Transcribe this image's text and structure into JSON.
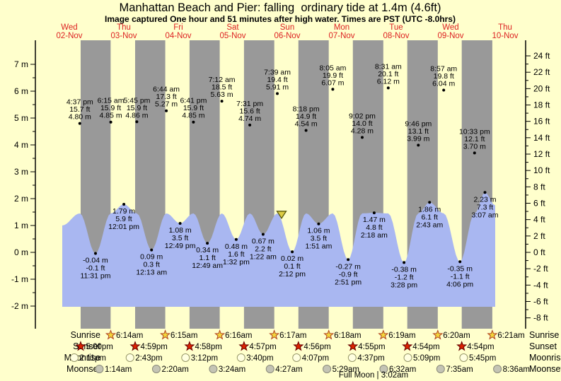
{
  "title": "Manhattan Beach and Pier: falling  ordinary tide at 1.4m (4.6ft)",
  "subtitle": "Image captured One hour and 51 minutes after high water. Times are PST (UTC -8.0hrs)",
  "colors": {
    "background": "#ffffcc",
    "night_band": "#999999",
    "water": "#a9b7f1",
    "day_label": "#dd2222",
    "axis": "#000000",
    "annotation": "#000000",
    "marker_fill": "#ddcc44",
    "marker_stroke": "#55550a",
    "sunrise_star_fill": "#f2d73c",
    "sunrise_star_stroke": "#b04020",
    "sunset_star_fill": "#dd2200",
    "sunset_star_stroke": "#660000",
    "moonrise_fill": "#ffffe0",
    "moonrise_stroke": "#99996a",
    "moonset_fill": "#c4c4b4",
    "moonset_stroke": "#8a8a7a"
  },
  "days": [
    {
      "label": "Wed",
      "date": "02-Nov"
    },
    {
      "label": "Thu",
      "date": "03-Nov"
    },
    {
      "label": "Fri",
      "date": "04-Nov"
    },
    {
      "label": "Sat",
      "date": "05-Nov"
    },
    {
      "label": "Sun",
      "date": "06-Nov"
    },
    {
      "label": "Mon",
      "date": "07-Nov"
    },
    {
      "label": "Tue",
      "date": "08-Nov"
    },
    {
      "label": "Wed",
      "date": "09-Nov"
    },
    {
      "label": "Thu",
      "date": "10-Nov"
    }
  ],
  "chart_data": {
    "type": "area",
    "title": "Manhattan Beach and Pier tide curve, 02-Nov to 10-Nov",
    "ylabel_left": "meters",
    "ylabel_right": "feet",
    "ylim_m": [
      -2,
      7
    ],
    "ylim_ft": [
      -8,
      24
    ],
    "grid": false,
    "y_axis_left_ticks": [
      {
        "v": 7,
        "label": "7 m"
      },
      {
        "v": 6,
        "label": "6 m"
      },
      {
        "v": 5,
        "label": "5 m"
      },
      {
        "v": 4,
        "label": "4 m"
      },
      {
        "v": 3,
        "label": "3 m"
      },
      {
        "v": 2,
        "label": "2 m"
      },
      {
        "v": 1,
        "label": "1 m"
      },
      {
        "v": 0,
        "label": "0 m"
      },
      {
        "v": -1,
        "label": "-1 m"
      },
      {
        "v": -2,
        "label": "-2 m"
      }
    ],
    "y_axis_right_ticks": [
      {
        "v": 24,
        "label": "24 ft"
      },
      {
        "v": 22,
        "label": "22 ft"
      },
      {
        "v": 20,
        "label": "20 ft"
      },
      {
        "v": 18,
        "label": "18 ft"
      },
      {
        "v": 16,
        "label": "16 ft"
      },
      {
        "v": 14,
        "label": "14 ft"
      },
      {
        "v": 12,
        "label": "12 ft"
      },
      {
        "v": 10,
        "label": "10 ft"
      },
      {
        "v": 8,
        "label": "8 ft"
      },
      {
        "v": 6,
        "label": "6 ft"
      },
      {
        "v": 4,
        "label": "4 ft"
      },
      {
        "v": 2,
        "label": "2 ft"
      },
      {
        "v": 0,
        "label": "0 ft"
      },
      {
        "v": -2,
        "label": "-2 ft"
      },
      {
        "v": -4,
        "label": "-4 ft"
      },
      {
        "v": -6,
        "label": "-6 ft"
      },
      {
        "v": -8,
        "label": "-8 ft"
      }
    ],
    "tide_events": [
      {
        "day": 0,
        "type": "high",
        "time": "4:37 pm",
        "hour": 16.62,
        "ft": "15.7 ft",
        "m": "4.80 m",
        "height_m": 4.8
      },
      {
        "day": 0,
        "type": "low",
        "time": "11:31 pm",
        "hour": 23.52,
        "ft": "-0.1 ft",
        "m": "-0.04 m",
        "height_m": -0.04
      },
      {
        "day": 1,
        "type": "high",
        "time": "6:15 am",
        "hour": 6.25,
        "ft": "15.9 ft",
        "m": "4.85 m",
        "height_m": 4.85
      },
      {
        "day": 1,
        "type": "low",
        "time": "12:01 pm",
        "hour": 12.02,
        "ft": "5.9 ft",
        "m": "1.79 m",
        "height_m": 1.79
      },
      {
        "day": 1,
        "type": "high",
        "time": "5:45 pm",
        "hour": 17.75,
        "ft": "15.9 ft",
        "m": "4.86 m",
        "height_m": 4.86
      },
      {
        "day": 2,
        "type": "low",
        "time": "12:13 am",
        "hour": 0.22,
        "ft": "0.3 ft",
        "m": "0.09 m",
        "height_m": 0.09
      },
      {
        "day": 2,
        "type": "high",
        "time": "6:44 am",
        "hour": 6.73,
        "ft": "17.3 ft",
        "m": "5.27 m",
        "height_m": 5.27
      },
      {
        "day": 2,
        "type": "low",
        "time": "12:49 pm",
        "hour": 12.82,
        "ft": "3.5 ft",
        "m": "1.08 m",
        "height_m": 1.08
      },
      {
        "day": 2,
        "type": "high",
        "time": "6:41 pm",
        "hour": 18.68,
        "ft": "15.9 ft",
        "m": "4.85 m",
        "height_m": 4.85
      },
      {
        "day": 3,
        "type": "low",
        "time": "12:49 am",
        "hour": 0.82,
        "ft": "1.1 ft",
        "m": "0.34 m",
        "height_m": 0.34
      },
      {
        "day": 3,
        "type": "high",
        "time": "7:12 am",
        "hour": 7.2,
        "ft": "18.5 ft",
        "m": "5.63 m",
        "height_m": 5.63
      },
      {
        "day": 3,
        "type": "low",
        "time": "1:32 pm",
        "hour": 13.53,
        "ft": "1.6 ft",
        "m": "0.48 m",
        "height_m": 0.48
      },
      {
        "day": 3,
        "type": "high",
        "time": "7:31 pm",
        "hour": 19.52,
        "ft": "15.6 ft",
        "m": "4.74 m",
        "height_m": 4.74
      },
      {
        "day": 4,
        "type": "low",
        "time": "1:22 am",
        "hour": 1.37,
        "ft": "2.2 ft",
        "m": "0.67 m",
        "height_m": 0.67
      },
      {
        "day": 4,
        "type": "high",
        "time": "7:39 am",
        "hour": 7.65,
        "ft": "19.4 ft",
        "m": "5.91 m",
        "height_m": 5.91
      },
      {
        "day": 4,
        "type": "low",
        "time": "2:12 pm",
        "hour": 14.2,
        "ft": "0.1 ft",
        "m": "0.02 m",
        "height_m": 0.02
      },
      {
        "day": 4,
        "type": "high",
        "time": "8:18 pm",
        "hour": 20.3,
        "ft": "14.9 ft",
        "m": "4.54 m",
        "height_m": 4.54
      },
      {
        "day": 5,
        "type": "low",
        "time": "1:51 am",
        "hour": 1.85,
        "ft": "3.5 ft",
        "m": "1.06 m",
        "height_m": 1.06
      },
      {
        "day": 5,
        "type": "high",
        "time": "8:05 am",
        "hour": 8.08,
        "ft": "19.9 ft",
        "m": "6.07 m",
        "height_m": 6.07
      },
      {
        "day": 5,
        "type": "low",
        "time": "2:51 pm",
        "hour": 14.85,
        "ft": "-0.9 ft",
        "m": "-0.27 m",
        "height_m": -0.27
      },
      {
        "day": 5,
        "type": "high",
        "time": "9:02 pm",
        "hour": 21.03,
        "ft": "14.0 ft",
        "m": "4.28 m",
        "height_m": 4.28
      },
      {
        "day": 6,
        "type": "low",
        "time": "2:18 am",
        "hour": 2.3,
        "ft": "4.8 ft",
        "m": "1.47 m",
        "height_m": 1.47
      },
      {
        "day": 6,
        "type": "high",
        "time": "8:31 am",
        "hour": 8.52,
        "ft": "20.1 ft",
        "m": "6.12 m",
        "height_m": 6.12
      },
      {
        "day": 6,
        "type": "low",
        "time": "3:28 pm",
        "hour": 15.47,
        "ft": "-1.2 ft",
        "m": "-0.38 m",
        "height_m": -0.38
      },
      {
        "day": 6,
        "type": "high",
        "time": "9:46 pm",
        "hour": 21.77,
        "ft": "13.1 ft",
        "m": "3.99 m",
        "height_m": 3.99
      },
      {
        "day": 7,
        "type": "low",
        "time": "2:43 am",
        "hour": 2.72,
        "ft": "6.1 ft",
        "m": "1.86 m",
        "height_m": 1.86
      },
      {
        "day": 7,
        "type": "high",
        "time": "8:57 am",
        "hour": 8.95,
        "ft": "19.8 ft",
        "m": "6.04 m",
        "height_m": 6.04
      },
      {
        "day": 7,
        "type": "low",
        "time": "4:06 pm",
        "hour": 16.1,
        "ft": "-1.1 ft",
        "m": "-0.35 m",
        "height_m": -0.35
      },
      {
        "day": 7,
        "type": "high",
        "time": "10:33 pm",
        "hour": 22.55,
        "ft": "12.1 ft",
        "m": "3.70 m",
        "height_m": 3.7
      },
      {
        "day": 8,
        "type": "low",
        "time": "3:07 am",
        "hour": 3.12,
        "ft": "7.3 ft",
        "m": "2.23 m",
        "height_m": 2.23
      }
    ],
    "current_marker": {
      "height_m": 1.4,
      "day": 4,
      "hour": 9.5
    }
  },
  "astro": {
    "rows": [
      {
        "label": "Sunrise",
        "icon": "sunrise-star",
        "entries": [
          {
            "time": "6:14am",
            "day": 1,
            "hour": 6.23
          },
          {
            "time": "6:15am",
            "day": 2,
            "hour": 6.25
          },
          {
            "time": "6:16am",
            "day": 3,
            "hour": 6.27
          },
          {
            "time": "6:17am",
            "day": 4,
            "hour": 6.28
          },
          {
            "time": "6:18am",
            "day": 5,
            "hour": 6.3
          },
          {
            "time": "6:19am",
            "day": 6,
            "hour": 6.32
          },
          {
            "time": "6:20am",
            "day": 7,
            "hour": 6.33
          },
          {
            "time": "6:21am",
            "day": 8,
            "hour": 6.35
          }
        ]
      },
      {
        "label": "Sunset",
        "icon": "sunset-star",
        "entries": [
          {
            "time": "5:00pm",
            "day": 0,
            "hour": 17.0
          },
          {
            "time": "4:59pm",
            "day": 1,
            "hour": 16.98
          },
          {
            "time": "4:58pm",
            "day": 2,
            "hour": 16.97
          },
          {
            "time": "4:57pm",
            "day": 3,
            "hour": 16.95
          },
          {
            "time": "4:56pm",
            "day": 4,
            "hour": 16.93
          },
          {
            "time": "4:55pm",
            "day": 5,
            "hour": 16.92
          },
          {
            "time": "4:54pm",
            "day": 6,
            "hour": 16.9
          },
          {
            "time": "4:54pm",
            "day": 7,
            "hour": 16.9
          }
        ]
      },
      {
        "label": "Moonrise",
        "icon": "moonrise-circle",
        "entries": [
          {
            "time": "2:11pm",
            "day": 0,
            "hour": 14.18
          },
          {
            "time": "2:43pm",
            "day": 1,
            "hour": 14.72
          },
          {
            "time": "3:12pm",
            "day": 2,
            "hour": 15.2
          },
          {
            "time": "3:40pm",
            "day": 3,
            "hour": 15.67
          },
          {
            "time": "4:07pm",
            "day": 4,
            "hour": 16.12
          },
          {
            "time": "4:37pm",
            "day": 5,
            "hour": 16.62
          },
          {
            "time": "5:09pm",
            "day": 6,
            "hour": 17.15
          },
          {
            "time": "5:45pm",
            "day": 7,
            "hour": 17.75
          }
        ]
      },
      {
        "label": "Moonset",
        "icon": "moonset-circle",
        "entries": [
          {
            "time": "1:14am",
            "day": 1,
            "hour": 1.23
          },
          {
            "time": "2:20am",
            "day": 2,
            "hour": 2.33
          },
          {
            "time": "3:24am",
            "day": 3,
            "hour": 3.4
          },
          {
            "time": "4:27am",
            "day": 4,
            "hour": 4.45
          },
          {
            "time": "5:29am",
            "day": 5,
            "hour": 5.48
          },
          {
            "time": "6:32am",
            "day": 6,
            "hour": 6.53
          },
          {
            "time": "7:35am",
            "day": 7,
            "hour": 7.58
          },
          {
            "time": "8:36am",
            "day": 8,
            "hour": 8.6
          }
        ]
      }
    ],
    "full_moon": "Full Moon | 3:02am"
  }
}
